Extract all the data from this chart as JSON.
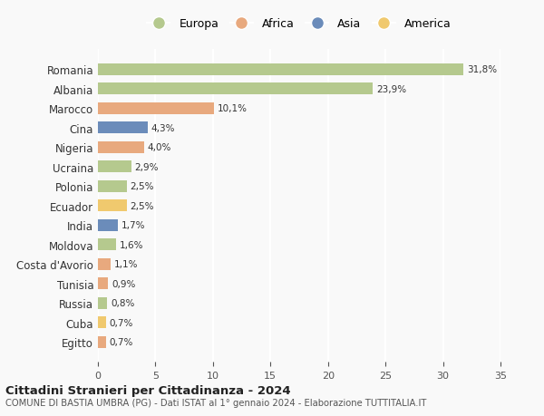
{
  "countries": [
    "Romania",
    "Albania",
    "Marocco",
    "Cina",
    "Nigeria",
    "Ucraina",
    "Polonia",
    "Ecuador",
    "India",
    "Moldova",
    "Costa d'Avorio",
    "Tunisia",
    "Russia",
    "Cuba",
    "Egitto"
  ],
  "values": [
    31.8,
    23.9,
    10.1,
    4.3,
    4.0,
    2.9,
    2.5,
    2.5,
    1.7,
    1.6,
    1.1,
    0.9,
    0.8,
    0.7,
    0.7
  ],
  "labels": [
    "31,8%",
    "23,9%",
    "10,1%",
    "4,3%",
    "4,0%",
    "2,9%",
    "2,5%",
    "2,5%",
    "1,7%",
    "1,6%",
    "1,1%",
    "0,9%",
    "0,8%",
    "0,7%",
    "0,7%"
  ],
  "continents": [
    "Europa",
    "Europa",
    "Africa",
    "Asia",
    "Africa",
    "Europa",
    "Europa",
    "America",
    "Asia",
    "Europa",
    "Africa",
    "Africa",
    "Europa",
    "America",
    "Africa"
  ],
  "colors": {
    "Europa": "#b5c98e",
    "Africa": "#e8a97e",
    "Asia": "#6b8cba",
    "America": "#f0c96e"
  },
  "legend_order": [
    "Europa",
    "Africa",
    "Asia",
    "America"
  ],
  "title": "Cittadini Stranieri per Cittadinanza - 2024",
  "subtitle": "COMUNE DI BASTIA UMBRA (PG) - Dati ISTAT al 1° gennaio 2024 - Elaborazione TUTTITALIA.IT",
  "xlim": [
    0,
    35
  ],
  "xticks": [
    0,
    5,
    10,
    15,
    20,
    25,
    30,
    35
  ],
  "background_color": "#f9f9f9",
  "grid_color": "#ffffff",
  "bar_height": 0.6
}
